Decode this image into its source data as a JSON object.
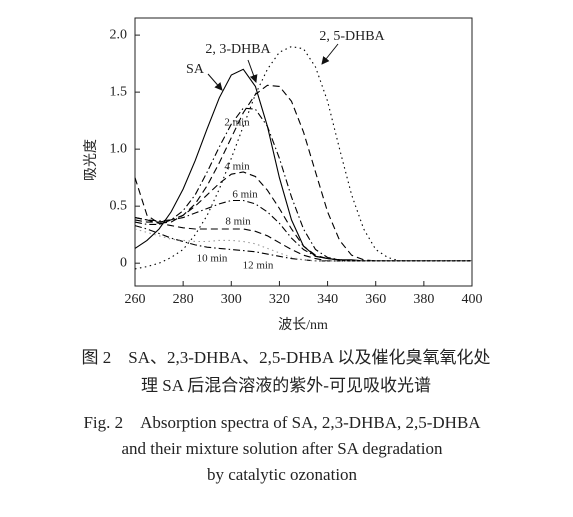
{
  "chart_data": {
    "type": "line",
    "xlabel": "波长/nm",
    "ylabel": "吸光度",
    "x": [
      260,
      265,
      270,
      275,
      280,
      285,
      290,
      295,
      300,
      305,
      310,
      315,
      320,
      325,
      330,
      335,
      340,
      345,
      350,
      355,
      360,
      365,
      370,
      375,
      380,
      385,
      390,
      395,
      400
    ],
    "xlim": [
      260,
      400
    ],
    "xticks": [
      260,
      280,
      300,
      320,
      340,
      360,
      380,
      400
    ],
    "ylim": [
      -0.2,
      2.15
    ],
    "yticks": [
      0,
      0.5,
      {
        "value": 1,
        "label": "1.0"
      },
      1.5,
      {
        "value": 2,
        "label": "2.0"
      }
    ],
    "series": [
      {
        "name": "SA",
        "color": "#000000",
        "style": "solid",
        "values": [
          0.13,
          0.2,
          0.3,
          0.45,
          0.65,
          0.9,
          1.18,
          1.45,
          1.65,
          1.7,
          1.55,
          1.2,
          0.75,
          0.38,
          0.15,
          0.06,
          0.04,
          0.03,
          0.03,
          0.02,
          0.02,
          0.02,
          0.02,
          0.02,
          0.02,
          0.02,
          0.02,
          0.02,
          0.02
        ]
      },
      {
        "name": "2, 3-DHBA",
        "color": "#000000",
        "style": "dashed",
        "values": [
          0.75,
          0.42,
          0.35,
          0.36,
          0.42,
          0.52,
          0.68,
          0.88,
          1.1,
          1.32,
          1.48,
          1.56,
          1.55,
          1.42,
          1.15,
          0.8,
          0.45,
          0.2,
          0.07,
          0.03,
          0.02,
          0.02,
          0.02,
          0.02,
          0.02,
          0.02,
          0.02,
          0.02,
          0.02
        ]
      },
      {
        "name": "2, 5-DHBA",
        "color": "#000000",
        "style": "dotted",
        "values": [
          -0.05,
          -0.03,
          0.0,
          0.05,
          0.12,
          0.25,
          0.42,
          0.65,
          0.92,
          1.2,
          1.48,
          1.7,
          1.85,
          1.9,
          1.88,
          1.72,
          1.42,
          1.0,
          0.6,
          0.3,
          0.12,
          0.05,
          0.02,
          0.02,
          0.02,
          0.02,
          0.02,
          0.02,
          0.02
        ]
      },
      {
        "name": "2 min",
        "color": "#000000",
        "style": "dashdot",
        "values": [
          0.36,
          0.34,
          0.34,
          0.38,
          0.46,
          0.6,
          0.8,
          1.02,
          1.22,
          1.36,
          1.35,
          1.2,
          0.92,
          0.58,
          0.3,
          0.12,
          0.05,
          0.03,
          0.02,
          0.02,
          0.02,
          0.02,
          0.02,
          0.02,
          0.02,
          0.02,
          0.02,
          0.02,
          0.02
        ]
      },
      {
        "name": "4 min",
        "color": "#000000",
        "style": "dashed",
        "values": [
          0.38,
          0.36,
          0.36,
          0.38,
          0.42,
          0.5,
          0.6,
          0.7,
          0.78,
          0.8,
          0.76,
          0.64,
          0.48,
          0.3,
          0.15,
          0.07,
          0.04,
          0.03,
          0.02,
          0.02,
          0.02,
          0.02,
          0.02,
          0.02,
          0.02,
          0.02,
          0.02,
          0.02,
          0.02
        ]
      },
      {
        "name": "6 min",
        "color": "#000000",
        "style": "dashdot",
        "values": [
          0.4,
          0.38,
          0.37,
          0.38,
          0.4,
          0.44,
          0.48,
          0.52,
          0.55,
          0.55,
          0.52,
          0.45,
          0.35,
          0.22,
          0.12,
          0.06,
          0.04,
          0.03,
          0.02,
          0.02,
          0.02,
          0.02,
          0.02,
          0.02,
          0.02,
          0.02,
          0.02,
          0.02,
          0.02
        ]
      },
      {
        "name": "8 min",
        "color": "#000000",
        "style": "dashed",
        "values": [
          0.4,
          0.38,
          0.35,
          0.33,
          0.31,
          0.3,
          0.3,
          0.3,
          0.3,
          0.3,
          0.28,
          0.24,
          0.18,
          0.12,
          0.07,
          0.04,
          0.02,
          0.02,
          0.02,
          0.02,
          0.02,
          0.02,
          0.02,
          0.02,
          0.02,
          0.02,
          0.02,
          0.02,
          0.02
        ]
      },
      {
        "name": "10 min",
        "color": "#000000",
        "style": "dashdot",
        "values": [
          0.33,
          0.3,
          0.26,
          0.22,
          0.19,
          0.16,
          0.14,
          0.13,
          0.12,
          0.11,
          0.1,
          0.08,
          0.06,
          0.04,
          0.03,
          0.02,
          0.02,
          0.02,
          0.02,
          0.02,
          0.02,
          0.02,
          0.02,
          0.02,
          0.02,
          0.02,
          0.02,
          0.02,
          0.02
        ]
      },
      {
        "name": "12 min",
        "color": "#999999",
        "style": "dotted",
        "values": [
          0.3,
          0.27,
          0.24,
          0.21,
          0.2,
          0.19,
          0.19,
          0.2,
          0.2,
          0.19,
          0.17,
          0.13,
          0.09,
          0.05,
          0.03,
          0.02,
          0.02,
          0.02,
          0.02,
          0.02,
          0.02,
          0.02,
          0.02,
          0.02,
          0.02,
          0.02,
          0.02,
          0.02,
          0.02
        ]
      }
    ],
    "caption_cn": [
      "图 2　SA、2,3-DHBA、2,5-DHBA 以及催化臭氧氧化处",
      "理 SA 后混合溶液的紫外-可见吸收光谱"
    ],
    "caption_en": [
      "Fig. 2　Absorption spectra of SA, 2,3-DHBA, 2,5-DHBA",
      "and their mixture solution after SA degradation",
      "by catalytic ozonation"
    ]
  }
}
